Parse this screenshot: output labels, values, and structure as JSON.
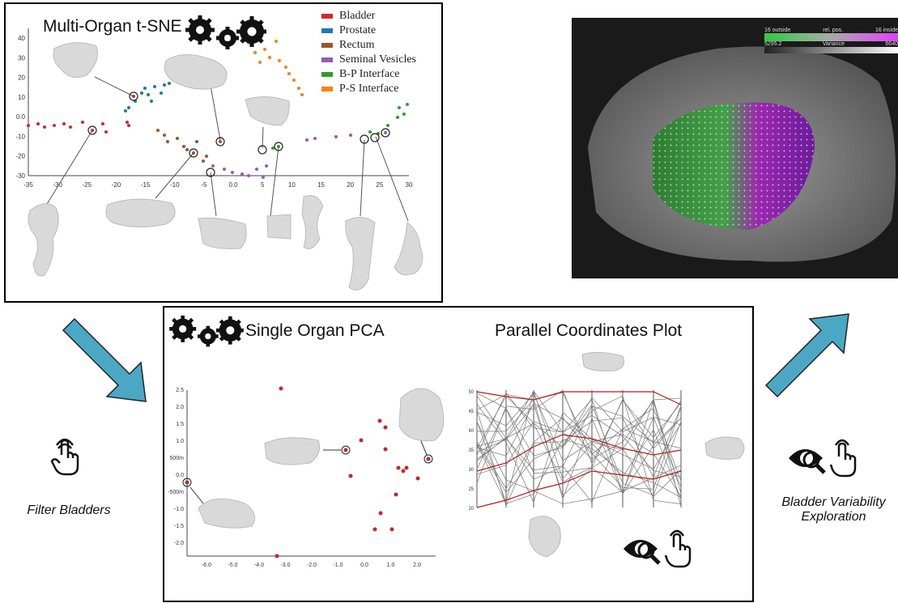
{
  "top_left_panel": {
    "title": "Multi-Organ t-SNE",
    "legend": [
      {
        "label": "Bladder",
        "color": "#d62728"
      },
      {
        "label": "Prostate",
        "color": "#1f77b4"
      },
      {
        "label": "Rectum",
        "color": "#a0522d"
      },
      {
        "label": "Seminal Vesicles",
        "color": "#9b59b6"
      },
      {
        "label": "B-P Interface",
        "color": "#2ca02c"
      },
      {
        "label": "P-S Interface",
        "color": "#ff7f0e"
      }
    ],
    "x_ticks": [
      "-35",
      "-30",
      "-25",
      "-20",
      "-15",
      "-10",
      "-5",
      "0.0",
      "5",
      "10",
      "15",
      "20",
      "25",
      "30"
    ],
    "y_ticks": [
      "40",
      "30",
      "20",
      "10",
      "0.0",
      "-10",
      "-20",
      "-30"
    ]
  },
  "render_panel": {
    "colorbar_top": {
      "left": "16 outside",
      "mid": "rel. pos.",
      "right": "16 inside"
    },
    "colorbar_bottom": {
      "left": "5295.2",
      "mid": "Variance",
      "right": "6640"
    }
  },
  "bottom_panel": {
    "pca_title": "Single Organ PCA",
    "pcp_title": "Parallel Coordinates Plot",
    "pca_x_ticks": [
      "-6.0",
      "-5.0",
      "-4.0",
      "-3.0",
      "-2.0",
      "-1.0",
      "0.0",
      "1.0",
      "2.0"
    ],
    "pca_y_ticks": [
      "2.5",
      "2.0",
      "1.5",
      "1.0",
      "500m",
      "0.0",
      "-500m",
      "-1.0",
      "-1.5",
      "-2.0"
    ],
    "pcp_first_axis_ticks": [
      "50",
      "45",
      "40",
      "35",
      "30",
      "25",
      "20"
    ]
  },
  "labels": {
    "filter": "Filter Bladders",
    "explore": "Bladder Variability Exploration"
  },
  "colors": {
    "arrow": "#4aa8c4",
    "point": "#c62828"
  }
}
